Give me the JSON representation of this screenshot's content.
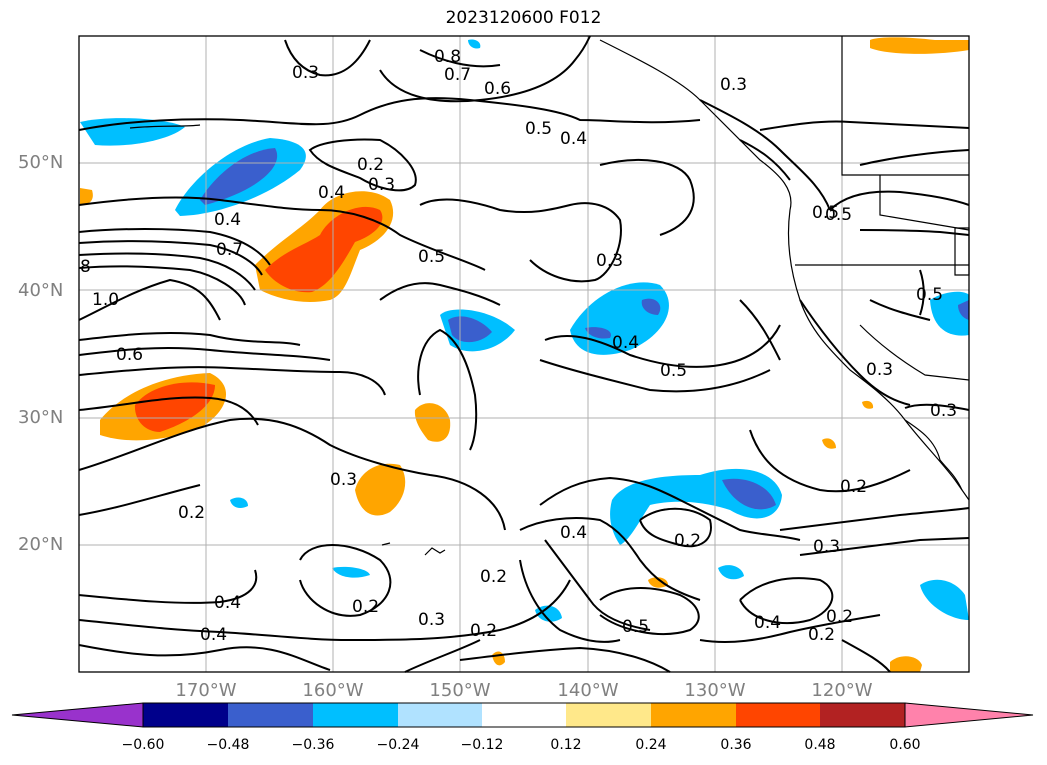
{
  "title": "2023120600 F012",
  "lat_labels": [
    "50°N",
    "40°N",
    "30°N",
    "20°N"
  ],
  "lon_labels": [
    "170°W",
    "160°W",
    "150°W",
    "140°W",
    "130°W",
    "120°W"
  ],
  "colorbar": {
    "ticks": [
      "−0.60",
      "−0.48",
      "−0.36",
      "−0.24",
      "−0.12",
      "0.12",
      "0.24",
      "0.36",
      "0.48",
      "0.60"
    ],
    "colors": [
      "#9932cc",
      "#00008b",
      "#3a5fcd",
      "#00bfff",
      "#b0e2ff",
      "#ffffff",
      "#ffe88a",
      "#ffa500",
      "#ff4500",
      "#b22222",
      "#ff82ab"
    ]
  },
  "contour_labels": [
    "0.3",
    "0.8",
    "0.7",
    "0.6",
    "0.3",
    "0.5",
    "0.4",
    "0.2",
    "0.3",
    "0.4",
    "0.4",
    "0.7",
    "0.5",
    "0.3",
    "8",
    "1.0",
    "0.6",
    "0.5",
    "0.5",
    "0.4",
    "0.5",
    "0.3",
    "0.3",
    "0.2",
    "0.2",
    "0.4",
    "0.2",
    "0.3",
    "0.2",
    "0.2",
    "0.3",
    "0.2",
    "0.3",
    "0.4",
    "0.5",
    "0.4",
    "0.2",
    "0.4",
    "0.2",
    "0.5"
  ]
}
